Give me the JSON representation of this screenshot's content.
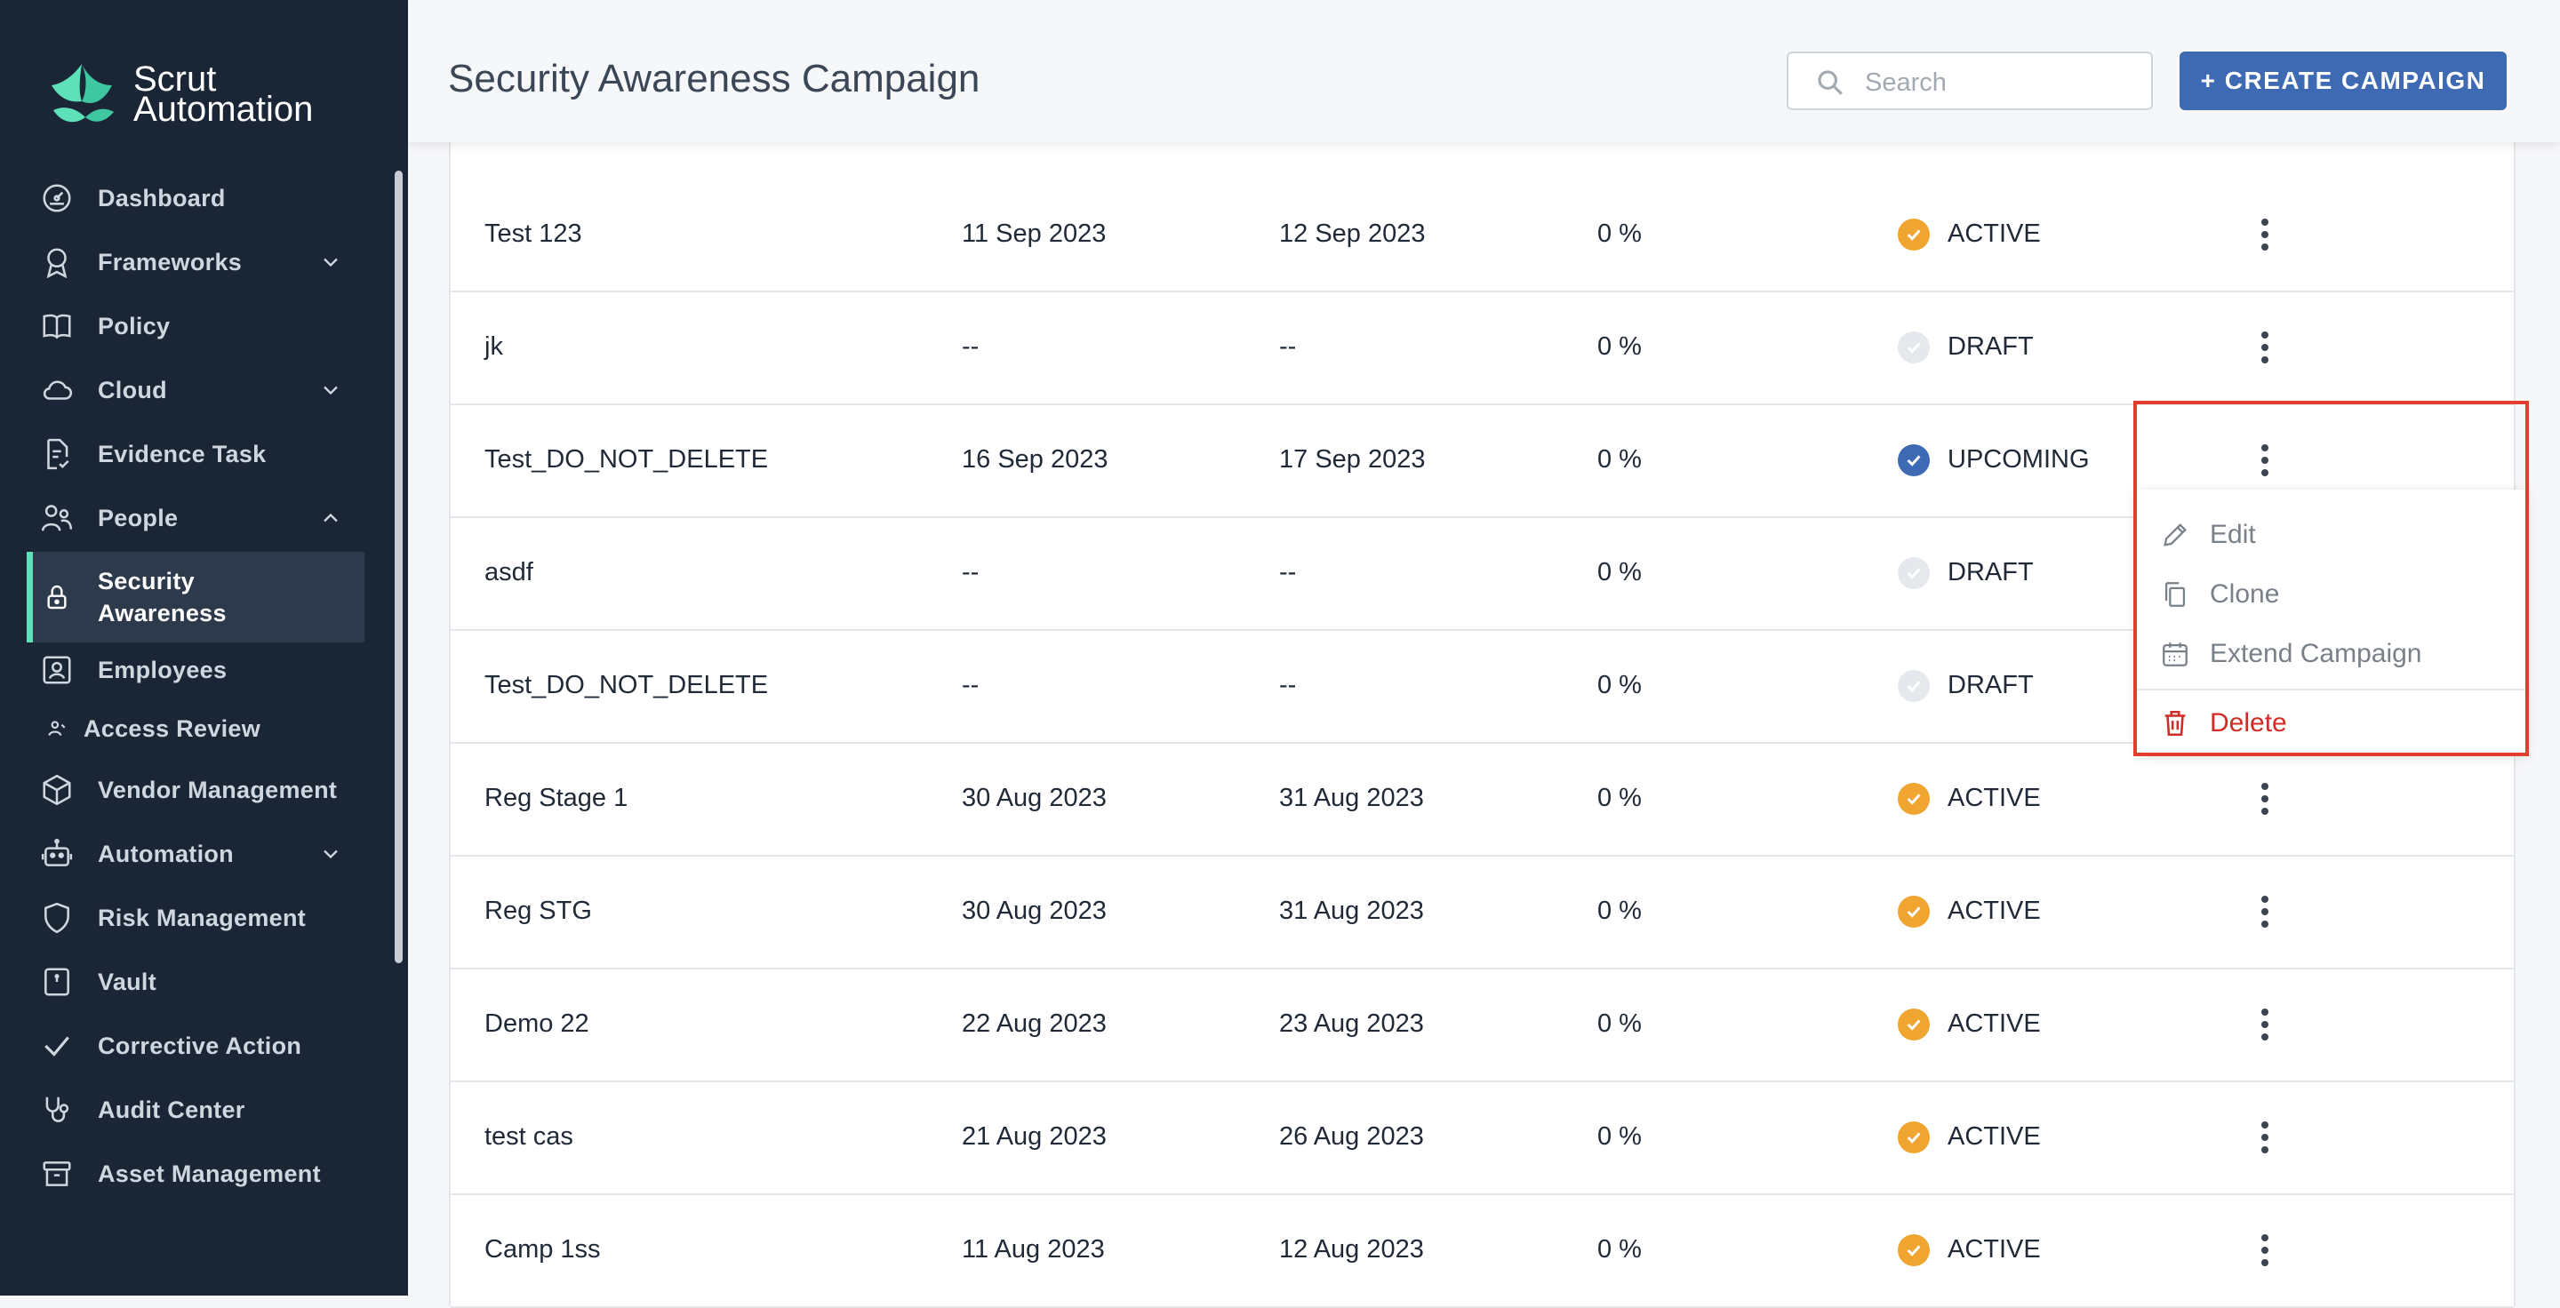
{
  "brand": {
    "line1": "Scrut",
    "line2": "Automation"
  },
  "sidebar": {
    "items": [
      {
        "label": "Dashboard",
        "icon": "dashboard-icon"
      },
      {
        "label": "Frameworks",
        "icon": "ribbon-icon",
        "chevron": "down"
      },
      {
        "label": "Policy",
        "icon": "book-icon"
      },
      {
        "label": "Cloud",
        "icon": "cloud-icon",
        "chevron": "down"
      },
      {
        "label": "Evidence Task",
        "icon": "document-check-icon"
      },
      {
        "label": "People",
        "icon": "people-icon",
        "chevron": "up"
      },
      {
        "label": "Security Awareness",
        "icon": "lock-icon",
        "active": true
      },
      {
        "label": "Employees",
        "icon": "person-badge-icon"
      },
      {
        "label": "Access Review",
        "icon": "person-small-icon"
      },
      {
        "label": "Vendor Management",
        "icon": "box-icon"
      },
      {
        "label": "Automation",
        "icon": "robot-icon",
        "chevron": "down"
      },
      {
        "label": "Risk Management",
        "icon": "shield-icon"
      },
      {
        "label": "Vault",
        "icon": "vault-icon"
      },
      {
        "label": "Corrective Action",
        "icon": "check-icon"
      },
      {
        "label": "Audit Center",
        "icon": "stethoscope-icon"
      },
      {
        "label": "Asset Management",
        "icon": "archive-icon"
      }
    ]
  },
  "header": {
    "title": "Security Awareness Campaign",
    "search_placeholder": "Search",
    "create_label": "+ CREATE CAMPAIGN"
  },
  "campaigns": [
    {
      "name": "Test 123",
      "start": "11 Sep 2023",
      "end": "12 Sep 2023",
      "progress": "0 %",
      "status": "ACTIVE"
    },
    {
      "name": "jk",
      "start": "--",
      "end": "--",
      "progress": "0 %",
      "status": "DRAFT"
    },
    {
      "name": "Test_DO_NOT_DELETE",
      "start": "16 Sep 2023",
      "end": "17 Sep 2023",
      "progress": "0 %",
      "status": "UPCOMING"
    },
    {
      "name": "asdf",
      "start": "--",
      "end": "--",
      "progress": "0 %",
      "status": "DRAFT"
    },
    {
      "name": "Test_DO_NOT_DELETE",
      "start": "--",
      "end": "--",
      "progress": "0 %",
      "status": "DRAFT"
    },
    {
      "name": "Reg Stage 1",
      "start": "30 Aug 2023",
      "end": "31 Aug 2023",
      "progress": "0 %",
      "status": "ACTIVE"
    },
    {
      "name": "Reg STG",
      "start": "30 Aug 2023",
      "end": "31 Aug 2023",
      "progress": "0 %",
      "status": "ACTIVE"
    },
    {
      "name": "Demo 22",
      "start": "22 Aug 2023",
      "end": "23 Aug 2023",
      "progress": "0 %",
      "status": "ACTIVE"
    },
    {
      "name": "test cas",
      "start": "21 Aug 2023",
      "end": "26 Aug 2023",
      "progress": "0 %",
      "status": "ACTIVE"
    },
    {
      "name": "Camp 1ss",
      "start": "11 Aug 2023",
      "end": "12 Aug 2023",
      "progress": "0 %",
      "status": "ACTIVE"
    }
  ],
  "row_menu": {
    "edit": "Edit",
    "clone": "Clone",
    "extend": "Extend Campaign",
    "delete": "Delete"
  },
  "colors": {
    "sidebar_bg": "#1a2536",
    "accent": "#3e6ab3",
    "active_indicator": "#5ee0b8",
    "status_active": "#f0a531",
    "status_upcoming": "#3e6ab3",
    "status_draft": "#e5e8ec",
    "danger": "#d12b26",
    "highlight_border": "#e33d2b"
  }
}
